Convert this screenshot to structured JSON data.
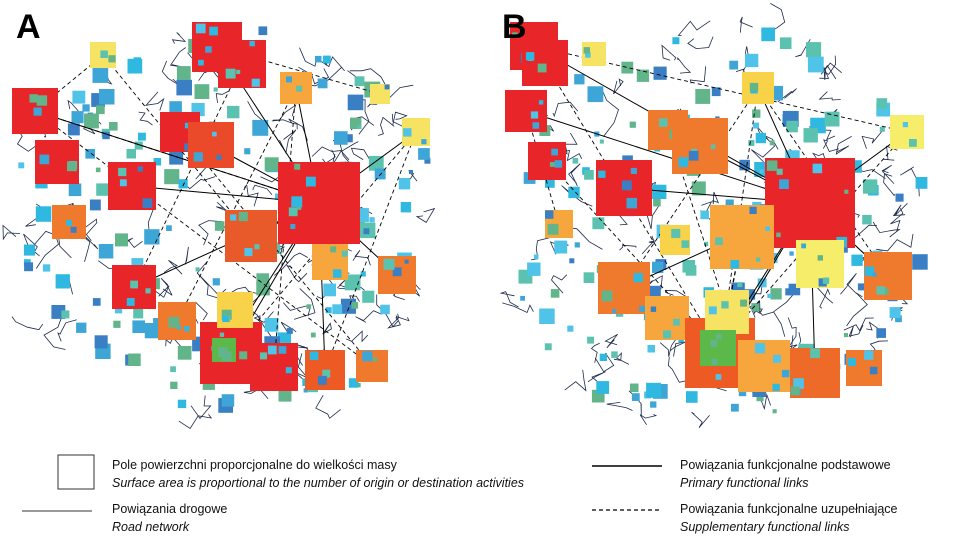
{
  "panels": [
    {
      "label": "A"
    },
    {
      "label": "B"
    }
  ],
  "legend": {
    "items": [
      {
        "title": "Pole powierzchni proporcjonalne do wielkości masy",
        "subtitle": "Surface area is proportional to the number of origin or destination activities"
      },
      {
        "title": "Powiązania drogowe",
        "subtitle": "Road network"
      },
      {
        "title": "Powiązania funkcjonalne podstawowe",
        "subtitle": "Primary functional links"
      },
      {
        "title": "Powiązania funkcjonalne uzupełniające",
        "subtitle": "Supplementary functional links"
      }
    ]
  }
}
